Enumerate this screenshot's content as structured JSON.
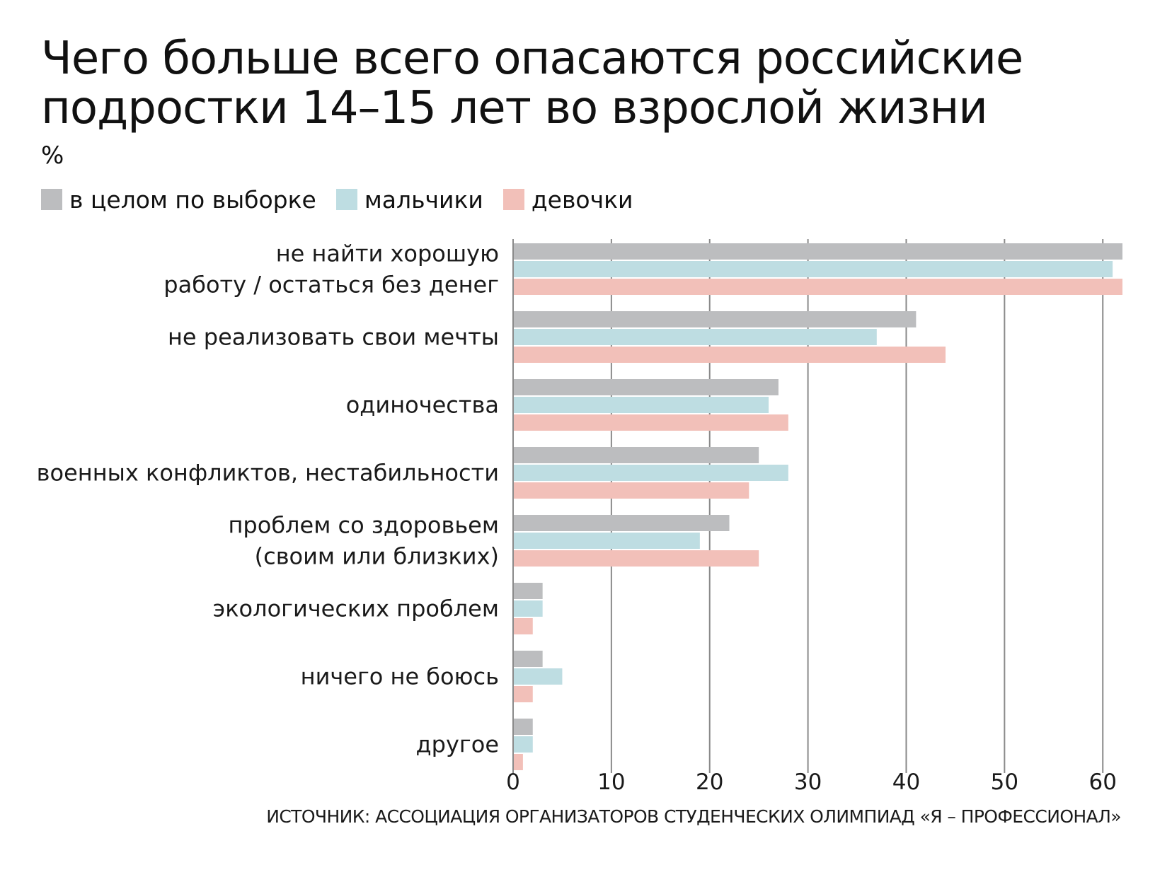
{
  "chart_data": {
    "type": "bar",
    "orientation": "horizontal",
    "title_lines": [
      "Чего больше всего опасаются российские",
      "подростки 14–15 лет во взрослой жизни"
    ],
    "unit": "%",
    "legend": {
      "placement": "top-left"
    },
    "series": [
      {
        "name": "в целом по выборке",
        "color": "#bcbdbf",
        "values": [
          62,
          41,
          27,
          25,
          22,
          3,
          3,
          2
        ]
      },
      {
        "name": "мальчики",
        "color": "#bedde2",
        "values": [
          61,
          37,
          26,
          28,
          19,
          3,
          5,
          2
        ]
      },
      {
        "name": "девочки",
        "color": "#f2c0b9",
        "values": [
          62,
          44,
          28,
          24,
          25,
          2,
          2,
          1
        ]
      }
    ],
    "categories": [
      [
        "не найти хорошую",
        "работу / остаться без денег"
      ],
      [
        "не реализовать свои мечты"
      ],
      [
        "одиночества"
      ],
      [
        "военных конфликтов, нестабильности"
      ],
      [
        "проблем со здоровьем",
        "(своим или близких)"
      ],
      [
        "экологических проблем"
      ],
      [
        "ничего не боюсь"
      ],
      [
        "другое"
      ]
    ],
    "xlim": [
      0,
      62
    ],
    "xticks": [
      0,
      10,
      20,
      30,
      40,
      50,
      60
    ],
    "grid": true,
    "gridline_color": "#8a8a8a",
    "source": "ИСТОЧНИК: АССОЦИАЦИЯ ОРГАНИЗАТОРОВ СТУДЕНЧЕСКИХ ОЛИМПИАД «Я – ПРОФЕССИОНАЛ»"
  }
}
